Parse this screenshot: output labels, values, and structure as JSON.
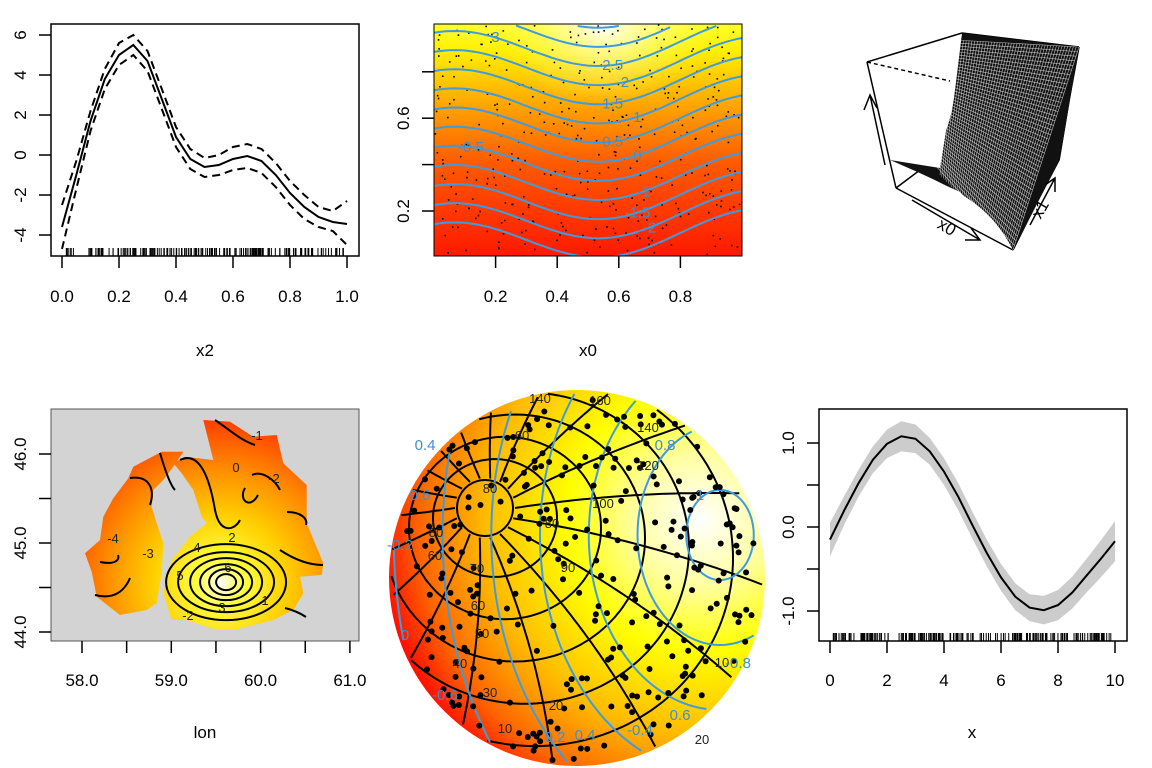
{
  "chart_data": [
    {
      "type": "line",
      "xlabel": "x2",
      "xlim": [
        0,
        1
      ],
      "ylim": [
        -5,
        6.5
      ],
      "xticks": [
        "0.0",
        "0.2",
        "0.4",
        "0.6",
        "0.8",
        "1.0"
      ],
      "yticks": [
        "-4",
        "-2",
        "0",
        "2",
        "4",
        "6"
      ],
      "rug": true,
      "x": [
        0,
        0.05,
        0.1,
        0.15,
        0.2,
        0.25,
        0.3,
        0.35,
        0.4,
        0.45,
        0.5,
        0.55,
        0.6,
        0.65,
        0.7,
        0.75,
        0.8,
        0.85,
        0.9,
        0.95,
        1.0
      ],
      "series": [
        {
          "style": "solid",
          "values": [
            -3.6,
            -1.0,
            1.7,
            3.8,
            5.0,
            5.5,
            4.7,
            2.8,
            0.9,
            -0.2,
            -0.6,
            -0.5,
            -0.2,
            -0.05,
            -0.3,
            -1.0,
            -1.9,
            -2.6,
            -3.1,
            -3.35,
            -3.45
          ]
        },
        {
          "style": "dashed",
          "values": [
            -2.5,
            -0.3,
            2.2,
            4.3,
            5.6,
            6.0,
            5.2,
            3.3,
            1.4,
            0.3,
            -0.15,
            0.0,
            0.4,
            0.55,
            0.3,
            -0.4,
            -1.3,
            -2.0,
            -2.6,
            -2.8,
            -2.3
          ]
        },
        {
          "style": "dashed",
          "values": [
            -4.7,
            -1.7,
            1.2,
            3.3,
            4.5,
            5.0,
            4.2,
            2.3,
            0.4,
            -0.7,
            -1.1,
            -1.0,
            -0.75,
            -0.65,
            -0.9,
            -1.6,
            -2.5,
            -3.2,
            -3.6,
            -3.8,
            -4.5
          ]
        }
      ]
    },
    {
      "type": "heatmap",
      "xlabel": "x0",
      "xlim": [
        0,
        1
      ],
      "ylim": [
        0,
        1
      ],
      "xticks": [
        "0.2",
        "0.4",
        "0.6",
        "0.8"
      ],
      "yticks": [
        "0.2",
        "0.6"
      ],
      "colors": {
        "low": "#ff0000",
        "mid": "#ff9900",
        "high": "#ffff00",
        "top": "#ffffff",
        "contour": "#3d9be0",
        "points": "#000000"
      },
      "contour_levels": [
        "3",
        "2.5",
        "2",
        "1.5",
        "1",
        "0.5",
        "0",
        "-0.5",
        "-1",
        "-1.5",
        "-2"
      ]
    },
    {
      "type": "surface",
      "axis_labels": [
        "x0",
        "x1"
      ]
    },
    {
      "type": "heatmap",
      "xlabel": "lon",
      "xlim": [
        57.6,
        61.1
      ],
      "ylim": [
        43.9,
        46.5
      ],
      "xticks": [
        "58.0",
        "59.0",
        "60.0",
        "61.0"
      ],
      "yticks": [
        "44.0",
        "45.0",
        "46.0"
      ],
      "colors": {
        "background": "#d3d3d3",
        "low": "#ff0000",
        "high": "#ffffff"
      },
      "contour_labels": [
        "-4",
        "-3",
        "0",
        "-1",
        "-2",
        "2",
        "1",
        "5",
        "3",
        "-2",
        "4",
        "6"
      ]
    },
    {
      "type": "heatmap",
      "projection": "sphere",
      "colors": {
        "low": "#ff0000",
        "high": "#ffffff",
        "contour": "#3d9be0",
        "grid": "#000000"
      },
      "grid_labels": [
        "140",
        "160",
        "140",
        "120",
        "100",
        "80",
        "80",
        "60",
        "90",
        "80",
        "70",
        "60",
        "50",
        "40",
        "30",
        "20",
        "10",
        "20",
        "10",
        "60"
      ],
      "contour_labels": [
        "0.8",
        "1",
        "0.4",
        "0.6",
        "-0.2",
        "0",
        "0.2",
        "-0.4",
        "0.4",
        "-0.6",
        "0.6",
        "-0.8"
      ]
    },
    {
      "type": "line",
      "xlabel": "x",
      "xlim": [
        -0.4,
        10.4
      ],
      "ylim": [
        -1.38,
        1.4
      ],
      "xticks": [
        "0",
        "2",
        "4",
        "6",
        "8",
        "10"
      ],
      "yticks": [
        "-1.0",
        "0.0",
        "1.0"
      ],
      "rug": true,
      "band_color": "#cccccc",
      "x": [
        0,
        0.5,
        1,
        1.5,
        2,
        2.5,
        3,
        3.5,
        4,
        4.5,
        5,
        5.5,
        6,
        6.5,
        7,
        7.5,
        8,
        8.5,
        9,
        9.5,
        10
      ],
      "series": [
        {
          "style": "solid",
          "values": [
            -0.15,
            0.2,
            0.52,
            0.8,
            0.99,
            1.08,
            1.05,
            0.9,
            0.66,
            0.36,
            0.02,
            -0.31,
            -0.6,
            -0.83,
            -0.96,
            -0.99,
            -0.93,
            -0.78,
            -0.58,
            -0.38,
            -0.17
          ]
        },
        {
          "style": "band-upper",
          "values": [
            0.05,
            0.37,
            0.68,
            0.96,
            1.16,
            1.26,
            1.22,
            1.06,
            0.82,
            0.52,
            0.18,
            -0.15,
            -0.44,
            -0.67,
            -0.8,
            -0.82,
            -0.75,
            -0.59,
            -0.38,
            -0.16,
            0.07
          ]
        },
        {
          "style": "band-lower",
          "values": [
            -0.35,
            0.03,
            0.36,
            0.64,
            0.82,
            0.9,
            0.88,
            0.74,
            0.5,
            0.2,
            -0.14,
            -0.47,
            -0.76,
            -0.99,
            -1.12,
            -1.16,
            -1.11,
            -0.97,
            -0.78,
            -0.6,
            -0.41
          ]
        }
      ]
    }
  ]
}
